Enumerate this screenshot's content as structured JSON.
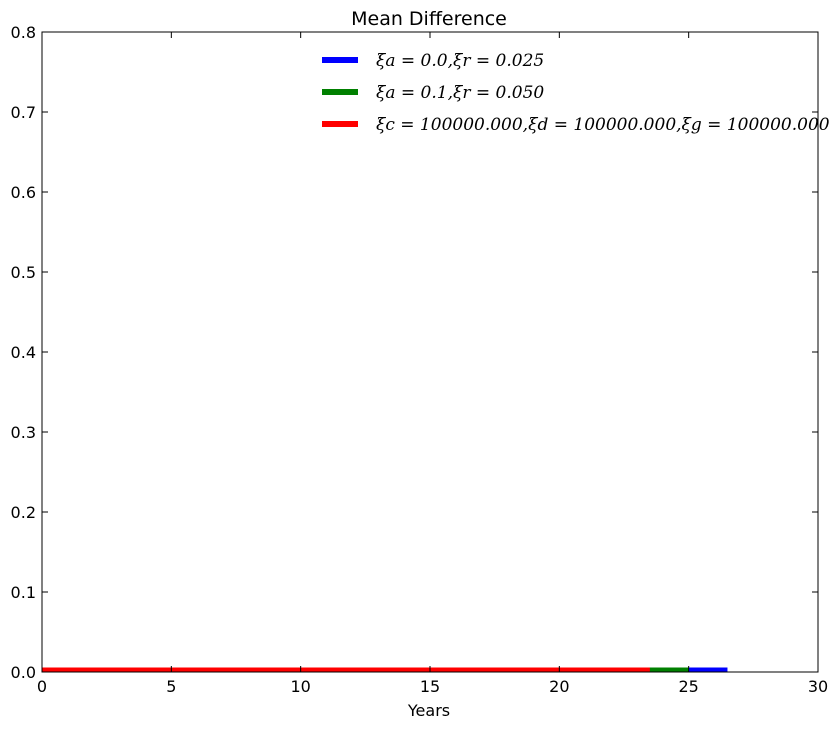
{
  "chart_data": {
    "type": "line",
    "title": "Mean Difference",
    "xlabel": "Years",
    "ylabel": "",
    "xlim": [
      0,
      30
    ],
    "ylim": [
      0.0,
      0.8
    ],
    "xticks": [
      "0",
      "5",
      "10",
      "15",
      "20",
      "25",
      "30"
    ],
    "yticks": [
      "0.0",
      "0.1",
      "0.2",
      "0.3",
      "0.4",
      "0.5",
      "0.6",
      "0.7",
      "0.8"
    ],
    "grid": false,
    "legend_position": "top-right",
    "series": [
      {
        "name": "ξa = 0.0,ξr = 0.025",
        "color": "#0000ff",
        "x": [
          0,
          26.5
        ],
        "y": [
          0.0,
          0.0
        ]
      },
      {
        "name": "ξa = 0.1,ξr = 0.050",
        "color": "#008000",
        "x": [
          0,
          25.0
        ],
        "y": [
          0.0,
          0.0
        ]
      },
      {
        "name": "ξc = 100000.000,ξd = 100000.000,ξg = 100000.000",
        "color": "#ff0000",
        "x": [
          0,
          23.5
        ],
        "y": [
          0.0,
          0.0
        ]
      }
    ]
  }
}
